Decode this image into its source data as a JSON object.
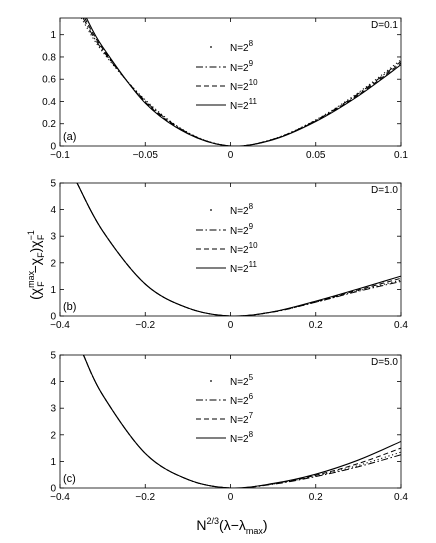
{
  "figure": {
    "ylabel": "(χ_F^max − χ_F)χ_F^−1",
    "xlabel": "N^2/3(λ−λ_max)"
  },
  "chart_data": [
    {
      "type": "line",
      "panel_label": "(a)",
      "annotation": "D=0.1",
      "xlim": [
        -0.1,
        0.1
      ],
      "ylim": [
        0,
        1.15
      ],
      "xticks": [
        -0.1,
        -0.05,
        0,
        0.05,
        0.1
      ],
      "xtick_labels": [
        "−0.1",
        "−0.05",
        "0",
        "0.05",
        "0.1"
      ],
      "yticks": [
        0,
        0.2,
        0.4,
        0.6,
        0.8,
        1
      ],
      "ytick_labels": [
        "0",
        "0.2",
        "0.4",
        "0.6",
        "0.8",
        "1"
      ],
      "legend_position": "top-center",
      "series": [
        {
          "name": "N=2^8",
          "style": "dotted",
          "values": [
            [
              -0.0875,
              1.15
            ],
            [
              -0.075,
              0.845
            ],
            [
              -0.05,
              0.415
            ],
            [
              -0.025,
              0.122
            ],
            [
              0,
              0
            ],
            [
              0.025,
              0.063
            ],
            [
              0.05,
              0.235
            ],
            [
              0.075,
              0.48
            ],
            [
              0.1,
              0.775
            ]
          ]
        },
        {
          "name": "N=2^9",
          "style": "dashdot",
          "values": [
            [
              -0.0865,
              1.15
            ],
            [
              -0.075,
              0.86
            ],
            [
              -0.05,
              0.405
            ],
            [
              -0.025,
              0.118
            ],
            [
              0,
              0
            ],
            [
              0.025,
              0.061
            ],
            [
              0.05,
              0.23
            ],
            [
              0.075,
              0.47
            ],
            [
              0.1,
              0.76
            ]
          ]
        },
        {
          "name": "N=2^10",
          "style": "dashed",
          "values": [
            [
              -0.0855,
              1.15
            ],
            [
              -0.075,
              0.875
            ],
            [
              -0.05,
              0.395
            ],
            [
              -0.025,
              0.114
            ],
            [
              0,
              0
            ],
            [
              0.025,
              0.059
            ],
            [
              0.05,
              0.225
            ],
            [
              0.075,
              0.46
            ],
            [
              0.1,
              0.745
            ]
          ]
        },
        {
          "name": "N=2^11",
          "style": "solid",
          "values": [
            [
              -0.0845,
              1.15
            ],
            [
              -0.075,
              0.89
            ],
            [
              -0.05,
              0.385
            ],
            [
              -0.025,
              0.11
            ],
            [
              0,
              0
            ],
            [
              0.025,
              0.057
            ],
            [
              0.05,
              0.22
            ],
            [
              0.075,
              0.45
            ],
            [
              0.1,
              0.73
            ]
          ]
        }
      ]
    },
    {
      "type": "line",
      "panel_label": "(b)",
      "annotation": "D=1.0",
      "xlim": [
        -0.4,
        0.4
      ],
      "ylim": [
        0,
        5
      ],
      "xticks": [
        -0.4,
        -0.2,
        0,
        0.2,
        0.4
      ],
      "xtick_labels": [
        "−0.4",
        "−0.2",
        "0",
        "0.2",
        "0.4"
      ],
      "yticks": [
        0,
        1,
        2,
        3,
        4,
        5
      ],
      "ytick_labels": [
        "0",
        "1",
        "2",
        "3",
        "4",
        "5"
      ],
      "legend_position": "top-center",
      "series": [
        {
          "name": "N=2^8",
          "style": "dotted",
          "values": [
            [
              -0.36,
              5
            ],
            [
              -0.3,
              3.2
            ],
            [
              -0.2,
              1.2
            ],
            [
              -0.1,
              0.3
            ],
            [
              0,
              0
            ],
            [
              0.1,
              0.15
            ],
            [
              0.2,
              0.52
            ],
            [
              0.3,
              0.95
            ],
            [
              0.4,
              1.35
            ]
          ]
        },
        {
          "name": "N=2^9",
          "style": "dashdot",
          "values": [
            [
              -0.36,
              5
            ],
            [
              -0.3,
              3.2
            ],
            [
              -0.2,
              1.2
            ],
            [
              -0.1,
              0.3
            ],
            [
              0,
              0
            ],
            [
              0.1,
              0.15
            ],
            [
              0.2,
              0.52
            ],
            [
              0.3,
              0.93
            ],
            [
              0.4,
              1.3
            ]
          ]
        },
        {
          "name": "N=2^10",
          "style": "dashed",
          "values": [
            [
              -0.36,
              5
            ],
            [
              -0.3,
              3.2
            ],
            [
              -0.2,
              1.2
            ],
            [
              -0.1,
              0.3
            ],
            [
              0,
              0
            ],
            [
              0.1,
              0.16
            ],
            [
              0.2,
              0.54
            ],
            [
              0.3,
              0.98
            ],
            [
              0.4,
              1.42
            ]
          ]
        },
        {
          "name": "N=2^11",
          "style": "solid",
          "values": [
            [
              -0.36,
              5
            ],
            [
              -0.3,
              3.2
            ],
            [
              -0.2,
              1.2
            ],
            [
              -0.1,
              0.3
            ],
            [
              0,
              0
            ],
            [
              0.1,
              0.16
            ],
            [
              0.2,
              0.56
            ],
            [
              0.3,
              1.02
            ],
            [
              0.4,
              1.5
            ]
          ]
        }
      ]
    },
    {
      "type": "line",
      "panel_label": "(c)",
      "annotation": "D=5.0",
      "xlim": [
        -0.4,
        0.4
      ],
      "ylim": [
        0,
        5
      ],
      "xticks": [
        -0.4,
        -0.2,
        0,
        0.2,
        0.4
      ],
      "xtick_labels": [
        "−0.4",
        "−0.2",
        "0",
        "0.2",
        "0.4"
      ],
      "yticks": [
        0,
        1,
        2,
        3,
        4,
        5
      ],
      "ytick_labels": [
        "0",
        "1",
        "2",
        "3",
        "4",
        "5"
      ],
      "legend_position": "top-center",
      "series": [
        {
          "name": "N=2^5",
          "style": "dotted",
          "values": [
            [
              -0.345,
              5
            ],
            [
              -0.3,
              3.5
            ],
            [
              -0.2,
              1.3
            ],
            [
              -0.1,
              0.32
            ],
            [
              0,
              0
            ],
            [
              0.1,
              0.15
            ],
            [
              0.2,
              0.45
            ],
            [
              0.3,
              0.85
            ],
            [
              0.4,
              1.35
            ]
          ]
        },
        {
          "name": "N=2^6",
          "style": "dashdot",
          "values": [
            [
              -0.345,
              5
            ],
            [
              -0.3,
              3.5
            ],
            [
              -0.2,
              1.3
            ],
            [
              -0.1,
              0.32
            ],
            [
              0,
              0
            ],
            [
              0.1,
              0.14
            ],
            [
              0.2,
              0.43
            ],
            [
              0.3,
              0.8
            ],
            [
              0.4,
              1.25
            ]
          ]
        },
        {
          "name": "N=2^7",
          "style": "dashed",
          "values": [
            [
              -0.345,
              5
            ],
            [
              -0.3,
              3.5
            ],
            [
              -0.2,
              1.3
            ],
            [
              -0.1,
              0.32
            ],
            [
              0,
              0
            ],
            [
              0.1,
              0.16
            ],
            [
              0.2,
              0.48
            ],
            [
              0.3,
              0.92
            ],
            [
              0.4,
              1.5
            ]
          ]
        },
        {
          "name": "N=2^8",
          "style": "solid",
          "values": [
            [
              -0.345,
              5
            ],
            [
              -0.3,
              3.5
            ],
            [
              -0.2,
              1.3
            ],
            [
              -0.1,
              0.32
            ],
            [
              0,
              0
            ],
            [
              0.1,
              0.17
            ],
            [
              0.2,
              0.52
            ],
            [
              0.3,
              1.05
            ],
            [
              0.4,
              1.75
            ]
          ]
        }
      ]
    }
  ]
}
